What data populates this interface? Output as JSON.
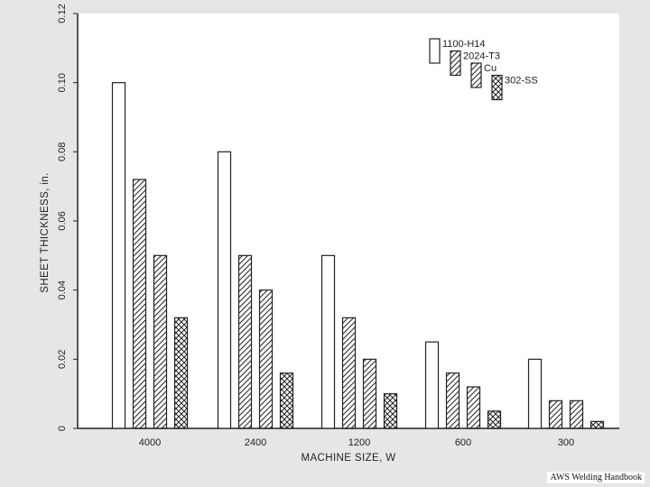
{
  "chart_data": {
    "type": "bar",
    "title": "",
    "xlabel": "MACHINE SIZE, W",
    "ylabel": "SHEET THICKNESS, in.",
    "ylim": [
      0,
      0.12
    ],
    "yticks": [
      "0",
      "0.02",
      "0.04",
      "0.06",
      "0.08",
      "0.10",
      "0.12"
    ],
    "categories": [
      "4000",
      "2400",
      "1200",
      "600",
      "300"
    ],
    "series": [
      {
        "name": "1100-H14",
        "values": [
          0.1,
          0.08,
          0.05,
          0.025,
          0.02
        ],
        "pattern": "none"
      },
      {
        "name": "2024-T3",
        "values": [
          0.072,
          0.05,
          0.032,
          0.016,
          0.008
        ],
        "pattern": "hatch"
      },
      {
        "name": "Cu",
        "values": [
          0.05,
          0.04,
          0.02,
          0.012,
          0.008
        ],
        "pattern": "hatch"
      },
      {
        "name": "302-SS",
        "values": [
          0.032,
          0.016,
          0.01,
          0.005,
          0.002
        ],
        "pattern": "crosshatch"
      }
    ],
    "legend_position": "top-right",
    "grid": false,
    "colors": {
      "background": "#e6e6e6",
      "plot": "#ffffff",
      "ink": "#222222"
    }
  },
  "caption": "AWS Welding Handbook"
}
